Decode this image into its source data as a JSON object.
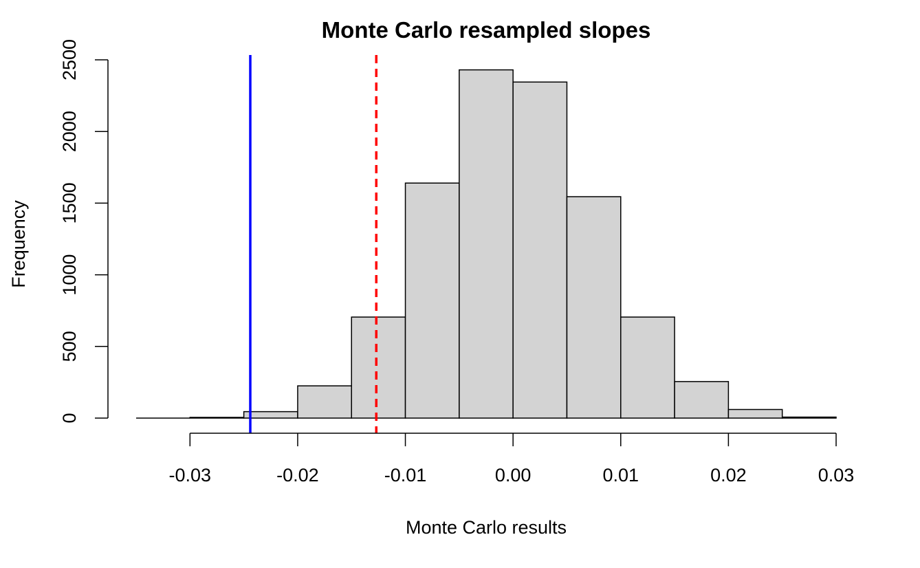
{
  "chart_data": {
    "type": "histogram",
    "title": "Monte Carlo resampled slopes",
    "xlabel": "Monte Carlo results",
    "ylabel": "Frequency",
    "xlim": [
      -0.035,
      0.03
    ],
    "ylim": [
      0,
      2500
    ],
    "x_ticks": [
      "-0.03",
      "-0.02",
      "-0.01",
      "0.00",
      "0.01",
      "0.02",
      "0.03"
    ],
    "x_tick_values": [
      -0.03,
      -0.02,
      -0.01,
      0.0,
      0.01,
      0.02,
      0.03
    ],
    "y_ticks": [
      "0",
      "500",
      "1000",
      "1500",
      "2000",
      "2500"
    ],
    "y_tick_values": [
      0,
      500,
      1000,
      1500,
      2000,
      2500
    ],
    "bins": [
      {
        "start": -0.03,
        "end": -0.025,
        "count": 5
      },
      {
        "start": -0.025,
        "end": -0.02,
        "count": 45
      },
      {
        "start": -0.02,
        "end": -0.015,
        "count": 225
      },
      {
        "start": -0.015,
        "end": -0.01,
        "count": 705
      },
      {
        "start": -0.01,
        "end": -0.005,
        "count": 1640
      },
      {
        "start": -0.005,
        "end": 0.0,
        "count": 2430
      },
      {
        "start": 0.0,
        "end": 0.005,
        "count": 2345
      },
      {
        "start": 0.005,
        "end": 0.01,
        "count": 1545
      },
      {
        "start": 0.01,
        "end": 0.015,
        "count": 705
      },
      {
        "start": 0.015,
        "end": 0.02,
        "count": 255
      },
      {
        "start": 0.02,
        "end": 0.025,
        "count": 60
      },
      {
        "start": 0.025,
        "end": 0.03,
        "count": 7
      }
    ],
    "bar_fill": "#d3d3d3",
    "bar_stroke": "#000000",
    "baseline_from": -0.035,
    "vlines": [
      {
        "x": -0.0244,
        "color": "#0000ff",
        "style": "solid"
      },
      {
        "x": -0.0127,
        "color": "#ff0000",
        "style": "dashed"
      }
    ],
    "grid": false,
    "legend": "none"
  }
}
